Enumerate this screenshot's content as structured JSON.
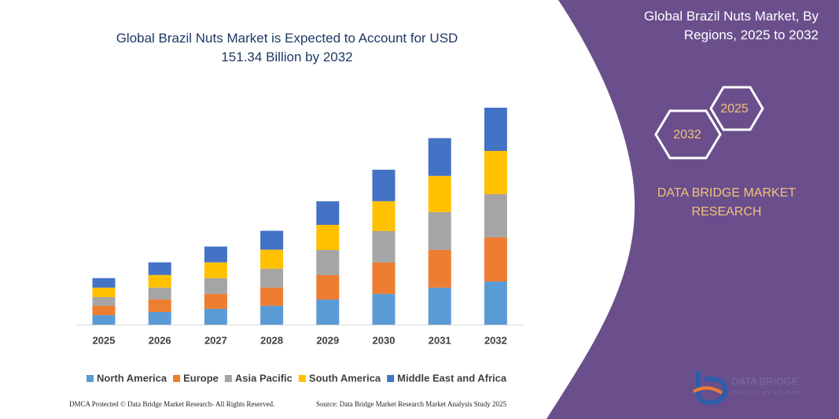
{
  "chart_data": {
    "type": "stacked_bar",
    "title": "Global Brazil Nuts Market is Expected to Account for USD 151.34 Billion by 2032",
    "categories": [
      "2025",
      "2026",
      "2027",
      "2028",
      "2029",
      "2030",
      "2031",
      "2032"
    ],
    "series": [
      {
        "name": "North America",
        "color": "#5b9bd5",
        "values": [
          6.6,
          8.8,
          11.0,
          13.2,
          17.5,
          21.4,
          25.8,
          30.1
        ]
      },
      {
        "name": "Europe",
        "color": "#ed7d31",
        "values": [
          6.6,
          8.8,
          10.4,
          12.6,
          17.0,
          21.9,
          26.3,
          30.7
        ]
      },
      {
        "name": "Asia Pacific",
        "color": "#a5a5a5",
        "values": [
          6.0,
          8.2,
          11.0,
          13.2,
          17.5,
          21.9,
          26.3,
          30.1
        ]
      },
      {
        "name": "South America",
        "color": "#ffc000",
        "values": [
          6.6,
          8.8,
          11.0,
          13.2,
          17.5,
          20.8,
          25.2,
          30.1
        ]
      },
      {
        "name": "Middle East and Africa",
        "color": "#4472c4",
        "values": [
          6.6,
          8.8,
          11.0,
          13.2,
          16.4,
          21.9,
          26.3,
          30.1
        ]
      }
    ]
  },
  "panel": {
    "title": "Global Brazil Nuts Market, By Regions, 2025 to 2032",
    "hex_labels": [
      "2025",
      "2032"
    ],
    "brand": "DATA BRIDGE MARKET RESEARCH",
    "logo_name": "DATA BRIDGE",
    "logo_tagline": "MARKET RESEARCH"
  },
  "footer": {
    "left": "DMCA Protected © Data Bridge Market Research- All Rights Reserved.",
    "right": "Source: Data Bridge Market Research Market Analysis Study 2025"
  }
}
